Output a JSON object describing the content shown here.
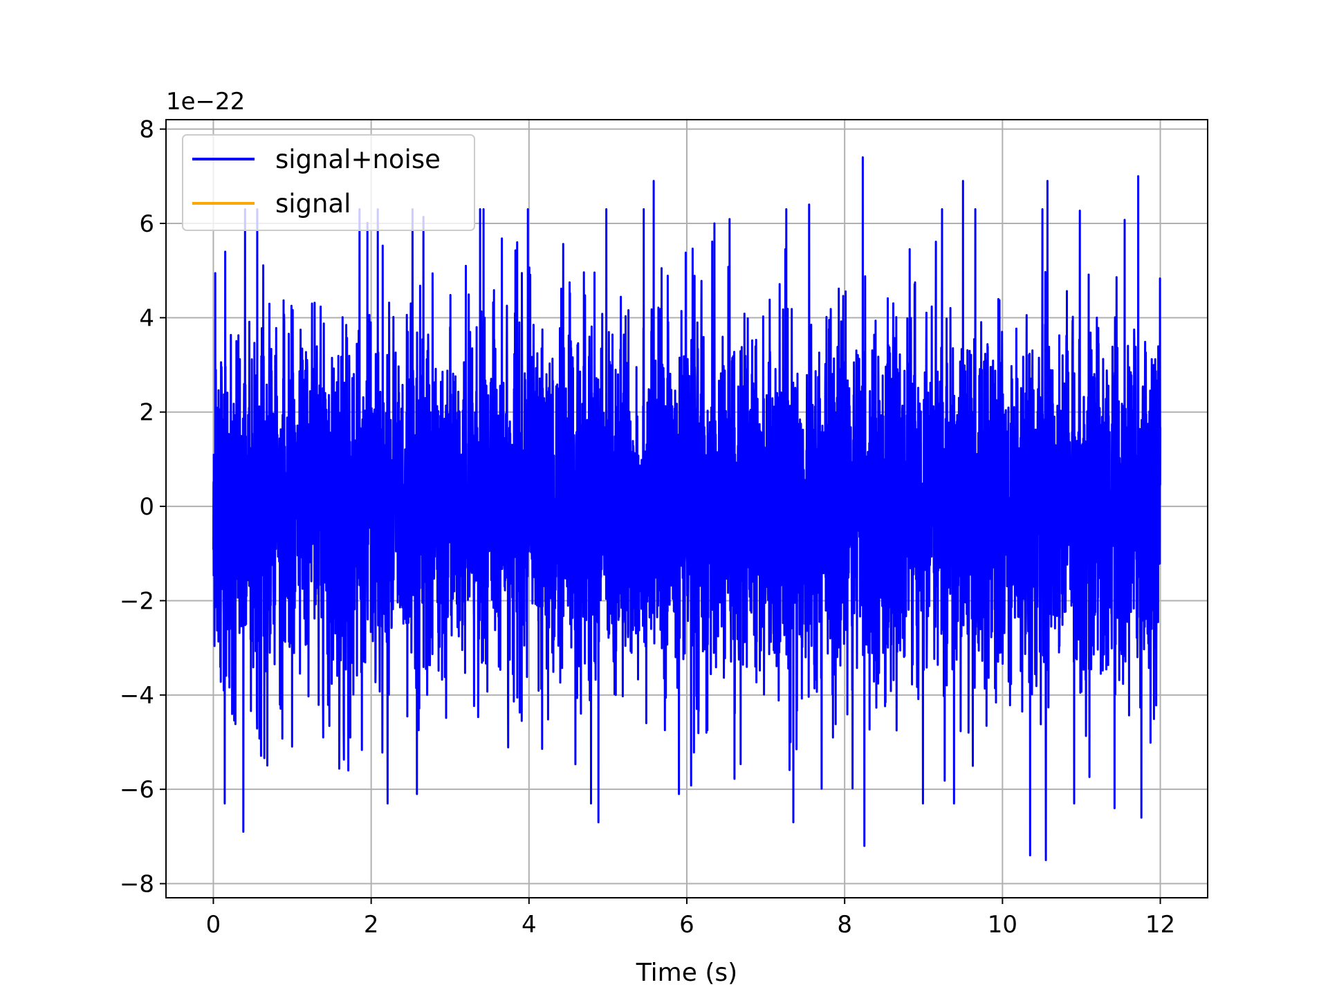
{
  "chart_data": {
    "type": "line",
    "title": "",
    "xlabel": "Time (s)",
    "ylabel": "",
    "y_offset_label": "1e−22",
    "xlim": [
      -0.6,
      12.6
    ],
    "ylim": [
      -8.3,
      8.2
    ],
    "x_ticks": [
      0,
      2,
      4,
      6,
      8,
      10,
      12
    ],
    "x_tick_labels": [
      "0",
      "2",
      "4",
      "6",
      "8",
      "10",
      "12"
    ],
    "y_ticks": [
      -8,
      -6,
      -4,
      -2,
      0,
      2,
      4,
      6,
      8
    ],
    "y_tick_labels": [
      "−8",
      "−6",
      "−4",
      "−2",
      "0",
      "2",
      "4",
      "6",
      "8"
    ],
    "grid": true,
    "legend_position": "upper-left",
    "series": [
      {
        "name": "signal+noise",
        "color": "#0000ff",
        "sampled_x_range": [
          0,
          12
        ],
        "sampled_y_range": [
          -7.5,
          7.4
        ],
        "peaks": [
          {
            "x": 0.15,
            "y": 5.4
          },
          {
            "x": 0.38,
            "y": -6.9
          },
          {
            "x": 1.25,
            "y": 4.3
          },
          {
            "x": 1.71,
            "y": -5.6
          },
          {
            "x": 2.58,
            "y": -6.1
          },
          {
            "x": 3.2,
            "y": 5.1
          },
          {
            "x": 3.85,
            "y": 5.6
          },
          {
            "x": 4.88,
            "y": -6.7
          },
          {
            "x": 5.58,
            "y": 6.9
          },
          {
            "x": 5.9,
            "y": -6.1
          },
          {
            "x": 6.35,
            "y": 6.0
          },
          {
            "x": 7.35,
            "y": -6.7
          },
          {
            "x": 7.55,
            "y": 6.4
          },
          {
            "x": 8.23,
            "y": 7.4
          },
          {
            "x": 8.25,
            "y": -7.2
          },
          {
            "x": 9.5,
            "y": 6.9
          },
          {
            "x": 10.35,
            "y": -7.4
          },
          {
            "x": 10.55,
            "y": -7.5
          },
          {
            "x": 10.57,
            "y": 6.9
          },
          {
            "x": 11.42,
            "y": -6.4
          },
          {
            "x": 11.72,
            "y": 7.0
          },
          {
            "x": 11.76,
            "y": -6.6
          }
        ]
      },
      {
        "name": "signal",
        "color": "#ffa500",
        "values": []
      }
    ]
  }
}
